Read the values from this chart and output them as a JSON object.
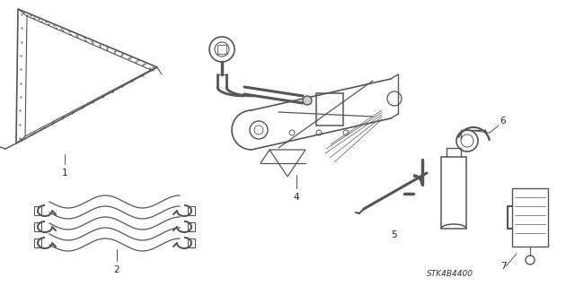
{
  "bg_color": "#ffffff",
  "line_color": "#555555",
  "label_color": "#222222",
  "part_code": "STK4B4400",
  "fig_width": 6.4,
  "fig_height": 3.19,
  "dpi": 100,
  "font_size": 7.5
}
